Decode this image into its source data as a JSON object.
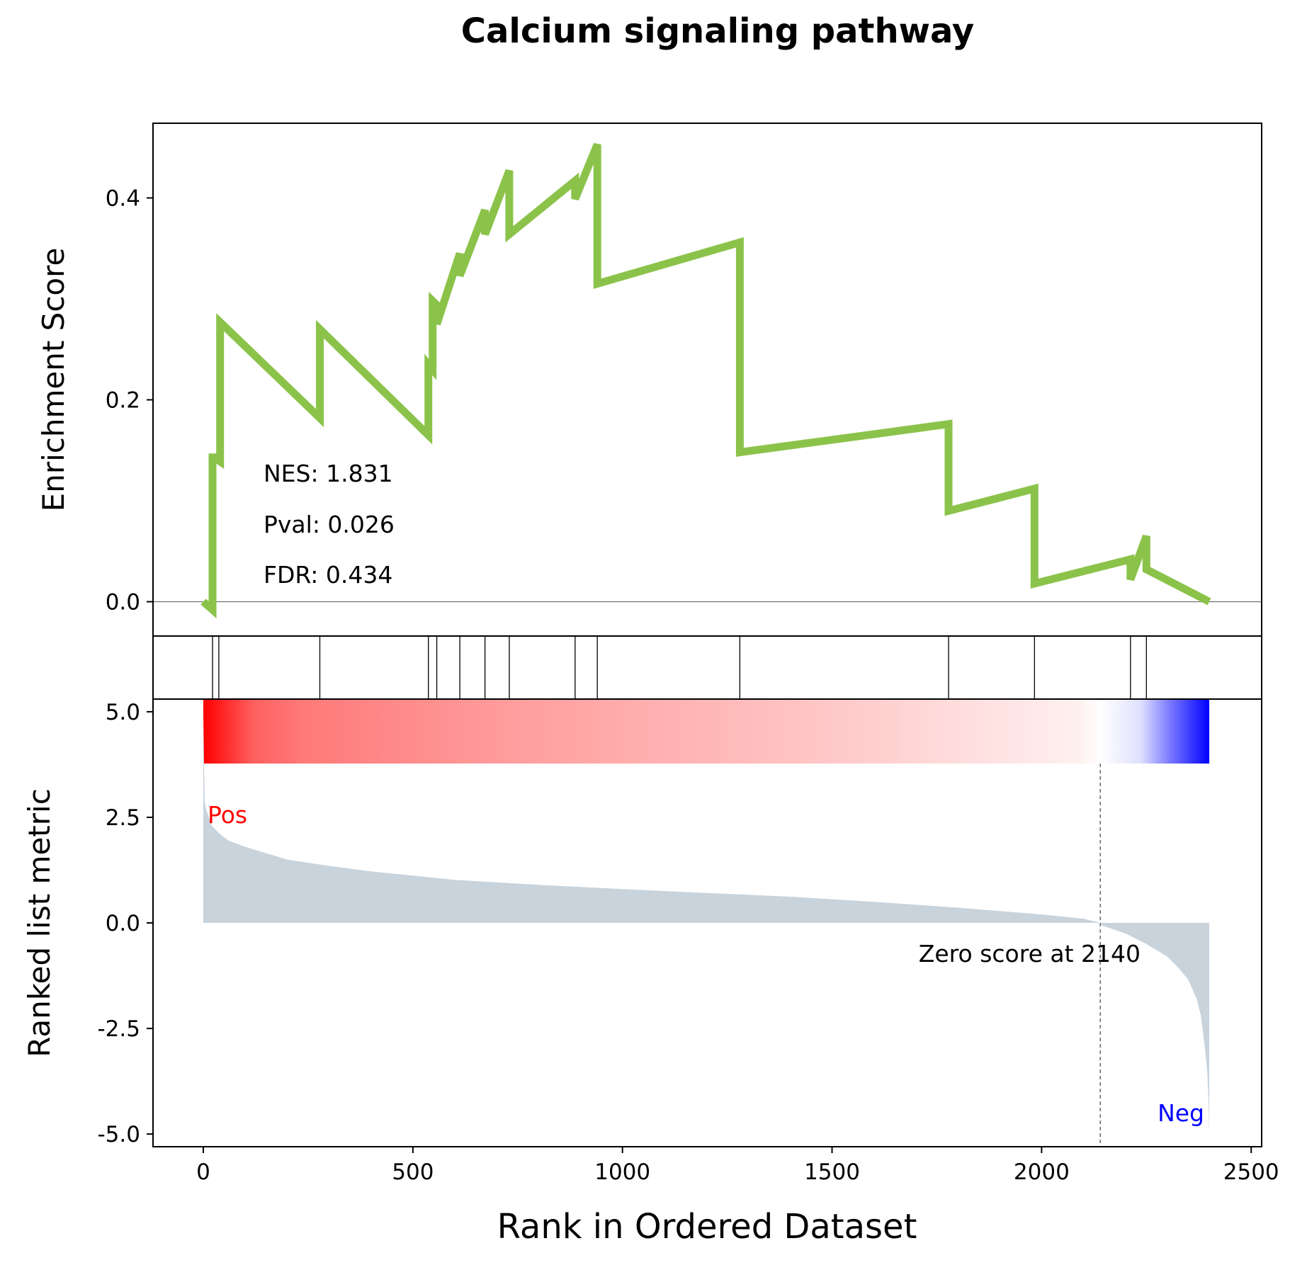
{
  "chart_data": {
    "type": "line",
    "title": "Calcium signaling pathway",
    "xlabel": "Rank in Ordered Dataset",
    "xlim": [
      -120,
      2525
    ],
    "x_ticks": [
      0,
      500,
      1000,
      1500,
      2000,
      2500
    ],
    "x_tick_labels": [
      "0",
      "500",
      "1000",
      "1500",
      "2000",
      "2500"
    ],
    "enrichment_panel": {
      "ylabel": "Enrichment Score",
      "ylim": [
        -0.034,
        0.474
      ],
      "y_ticks": [
        0.0,
        0.2,
        0.4
      ],
      "y_tick_labels": [
        "0.0",
        "0.2",
        "0.4"
      ],
      "line_color": "#8bc34a",
      "zero_line": true,
      "stats": [
        "NES: 1.831",
        "Pval: 0.026",
        "FDR: 0.434"
      ],
      "curve": {
        "x": [
          0,
          22,
          22,
          30,
          30,
          40,
          40,
          278,
          278,
          537,
          537,
          547,
          547,
          557,
          557,
          612,
          612,
          672,
          672,
          730,
          730,
          887,
          887,
          940,
          940,
          1280,
          1280,
          1778,
          1778,
          1983,
          1983,
          2212,
          2212,
          2250,
          2250,
          2400
        ],
        "y": [
          0.0,
          -0.008,
          0.143,
          0.143,
          0.142,
          0.139,
          0.277,
          0.182,
          0.27,
          0.165,
          0.235,
          0.23,
          0.298,
          0.294,
          0.275,
          0.345,
          0.323,
          0.388,
          0.364,
          0.427,
          0.364,
          0.417,
          0.399,
          0.453,
          0.315,
          0.356,
          0.148,
          0.176,
          0.09,
          0.112,
          0.018,
          0.042,
          0.022,
          0.065,
          0.032,
          0.0
        ]
      }
    },
    "hits_panel": {
      "hit_ranks": [
        22,
        37,
        278,
        537,
        557,
        612,
        672,
        730,
        887,
        940,
        1280,
        1778,
        1983,
        2212,
        2250
      ]
    },
    "color_bar": {
      "colors": [
        "#ff0000",
        "#ffffff",
        "#0000ff"
      ],
      "center_rank": 2140,
      "x_range": [
        0,
        2400
      ]
    },
    "ranked_metric_panel": {
      "ylabel": "Ranked list metric",
      "ylim": [
        -5.3,
        5.3
      ],
      "y_ticks": [
        5.0,
        2.5,
        0.0,
        -2.5,
        -5.0
      ],
      "y_tick_labels": [
        "5.0",
        "2.5",
        "0.0",
        "-2.5",
        "-5.0"
      ],
      "fill_color": "#c8d3dc",
      "pos_label": "Pos",
      "pos_color": "#ff0000",
      "neg_label": "Neg",
      "neg_color": "#0000ff",
      "zero_score_rank": 2140,
      "zero_score_label": "Zero score at 2140",
      "metric": {
        "rank": [
          0,
          3,
          6,
          10,
          20,
          40,
          60,
          100,
          150,
          200,
          300,
          400,
          500,
          600,
          800,
          1000,
          1200,
          1400,
          1600,
          1800,
          2000,
          2100,
          2140,
          2141,
          2200,
          2250,
          2300,
          2330,
          2350,
          2370,
          2380,
          2385,
          2390,
          2395,
          2398,
          2400
        ],
        "value": [
          5.0,
          2.9,
          2.7,
          2.6,
          2.3,
          2.1,
          1.95,
          1.8,
          1.65,
          1.5,
          1.35,
          1.22,
          1.12,
          1.02,
          0.9,
          0.8,
          0.71,
          0.62,
          0.5,
          0.36,
          0.2,
          0.1,
          0.0,
          -0.05,
          -0.25,
          -0.5,
          -0.8,
          -1.1,
          -1.35,
          -1.8,
          -2.2,
          -2.6,
          -3.0,
          -3.5,
          -4.2,
          -5.0
        ]
      }
    }
  }
}
